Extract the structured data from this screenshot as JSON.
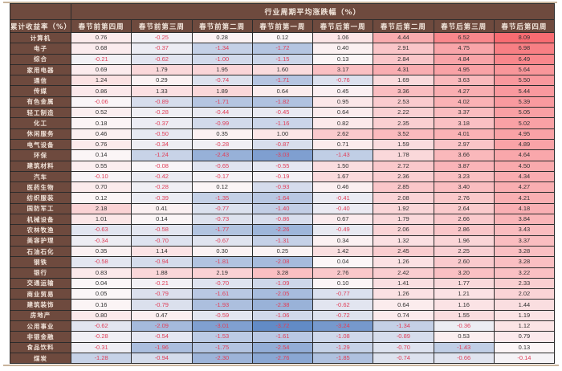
{
  "table": {
    "group_header": "行业周期平均涨跌幅（%）",
    "row_header_label": "累计收益率（%）",
    "columns": [
      "春节前第四周",
      "春节前第三周",
      "春节前第二周",
      "春节前第一周",
      "春节后第一周",
      "春节后第二周",
      "春节后第三周",
      "春节后第四周"
    ],
    "color_scale": {
      "negative": "#5b86c4",
      "neutral": "#fbf7f8",
      "positive": "#f86a70"
    },
    "rows": [
      {
        "industry": "计算机",
        "values": [
          "0.76",
          "-0.25",
          "0.28",
          "0.12",
          "1.06",
          "4.44",
          "6.52",
          "8.09"
        ]
      },
      {
        "industry": "电子",
        "values": [
          "0.68",
          "-0.37",
          "-1.34",
          "-1.72",
          "0.40",
          "2.91",
          "4.75",
          "6.98"
        ]
      },
      {
        "industry": "综合",
        "values": [
          "-0.21",
          "-0.62",
          "-1.00",
          "-1.15",
          "0.13",
          "2.84",
          "4.84",
          "6.49"
        ]
      },
      {
        "industry": "家用电器",
        "values": [
          "0.69",
          "1.79",
          "1.95",
          "1.60",
          "3.17",
          "4.31",
          "4.95",
          "5.64"
        ]
      },
      {
        "industry": "通信",
        "values": [
          "1.24",
          "0.29",
          "-0.74",
          "-1.71",
          "-0.76",
          "1.69",
          "3.63",
          "5.50"
        ]
      },
      {
        "industry": "传媒",
        "values": [
          "0.86",
          "1.33",
          "1.89",
          "0.64",
          "0.45",
          "3.36",
          "4.27",
          "5.44"
        ]
      },
      {
        "industry": "有色金属",
        "values": [
          "-0.06",
          "-0.89",
          "-1.71",
          "-1.82",
          "0.95",
          "2.53",
          "4.02",
          "5.39"
        ]
      },
      {
        "industry": "轻工制造",
        "values": [
          "0.52",
          "-0.28",
          "-0.44",
          "-0.45",
          "0.64",
          "2.22",
          "3.37",
          "5.05"
        ]
      },
      {
        "industry": "化工",
        "values": [
          "0.18",
          "-0.37",
          "-0.99",
          "-1.16",
          "0.82",
          "2.35",
          "3.18",
          "5.02"
        ]
      },
      {
        "industry": "休闲服务",
        "values": [
          "0.46",
          "-0.50",
          "0.35",
          "1.00",
          "2.62",
          "3.52",
          "4.01",
          "4.95"
        ]
      },
      {
        "industry": "电气设备",
        "values": [
          "0.76",
          "-0.34",
          "-0.28",
          "-0.87",
          "0.71",
          "1.59",
          "2.97",
          "4.89"
        ]
      },
      {
        "industry": "环保",
        "values": [
          "0.14",
          "-1.24",
          "-2.43",
          "-3.03",
          "-1.43",
          "1.78",
          "3.66",
          "4.64"
        ]
      },
      {
        "industry": "建筑材料",
        "values": [
          "0.55",
          "-0.08",
          "-0.65",
          "-0.55",
          "1.50",
          "2.72",
          "3.87",
          "4.50"
        ]
      },
      {
        "industry": "汽车",
        "values": [
          "-0.10",
          "-0.42",
          "-0.17",
          "-0.19",
          "1.67",
          "2.36",
          "3.23",
          "4.34"
        ]
      },
      {
        "industry": "医药生物",
        "values": [
          "0.70",
          "-0.28",
          "0.12",
          "-0.93",
          "0.46",
          "2.85",
          "3.40",
          "4.27"
        ]
      },
      {
        "industry": "纺织服装",
        "values": [
          "0.12",
          "-0.39",
          "-1.35",
          "-1.64",
          "-0.41",
          "2.08",
          "2.76",
          "4.21"
        ]
      },
      {
        "industry": "国防军工",
        "values": [
          "2.18",
          "0.41",
          "-0.77",
          "-1.40",
          "-0.40",
          "1.92",
          "2.64",
          "4.18"
        ]
      },
      {
        "industry": "机械设备",
        "values": [
          "1.01",
          "0.14",
          "-0.73",
          "-0.86",
          "0.67",
          "1.79",
          "2.66",
          "3.84"
        ]
      },
      {
        "industry": "农林牧渔",
        "values": [
          "-0.63",
          "-0.58",
          "-1.77",
          "-2.26",
          "-0.49",
          "2.06",
          "2.86",
          "3.43"
        ]
      },
      {
        "industry": "美容护理",
        "values": [
          "-0.34",
          "-0.70",
          "-0.67",
          "-1.31",
          "0.34",
          "1.32",
          "1.96",
          "3.37"
        ]
      },
      {
        "industry": "石油石化",
        "values": [
          "0.35",
          "1.14",
          "0.30",
          "0.25",
          "1.42",
          "2.45",
          "2.25",
          "3.28"
        ]
      },
      {
        "industry": "钢铁",
        "values": [
          "-0.58",
          "-0.94",
          "-1.81",
          "-2.08",
          "0.04",
          "1.26",
          "2.60",
          "3.28"
        ]
      },
      {
        "industry": "银行",
        "values": [
          "0.83",
          "1.88",
          "2.19",
          "3.28",
          "2.76",
          "2.42",
          "3.20",
          "3.22"
        ]
      },
      {
        "industry": "交通运输",
        "values": [
          "0.04",
          "-0.21",
          "-0.70",
          "-1.09",
          "0.10",
          "1.41",
          "1.77",
          "2.33"
        ]
      },
      {
        "industry": "商业贸易",
        "values": [
          "0.05",
          "-0.79",
          "-1.61",
          "-2.05",
          "-0.77",
          "1.26",
          "1.21",
          "2.02"
        ]
      },
      {
        "industry": "建筑装饰",
        "values": [
          "0.16",
          "-0.79",
          "-1.93",
          "-2.38",
          "-0.62",
          "0.64",
          "1.16",
          "1.44"
        ]
      },
      {
        "industry": "房地产",
        "values": [
          "0.80",
          "0.47",
          "-0.59",
          "-1.06",
          "-0.72",
          "0.74",
          "1.55",
          "1.19"
        ]
      },
      {
        "industry": "公用事业",
        "values": [
          "-0.62",
          "-2.09",
          "-3.01",
          "-3.72",
          "-3.24",
          "-1.34",
          "-0.36",
          "1.12"
        ]
      },
      {
        "industry": "非银金融",
        "values": [
          "-0.28",
          "-0.54",
          "-1.53",
          "-1.61",
          "-1.08",
          "-0.89",
          "0.53",
          "0.79"
        ]
      },
      {
        "industry": "食品饮料",
        "values": [
          "-0.31",
          "-1.96",
          "-1.75",
          "-2.54",
          "-1.29",
          "-0.70",
          "-1.43",
          "0.13"
        ]
      },
      {
        "industry": "煤炭",
        "values": [
          "-1.28",
          "-0.94",
          "-2.30",
          "-2.76",
          "-1.85",
          "-0.74",
          "-0.66",
          "-0.14"
        ]
      }
    ]
  }
}
